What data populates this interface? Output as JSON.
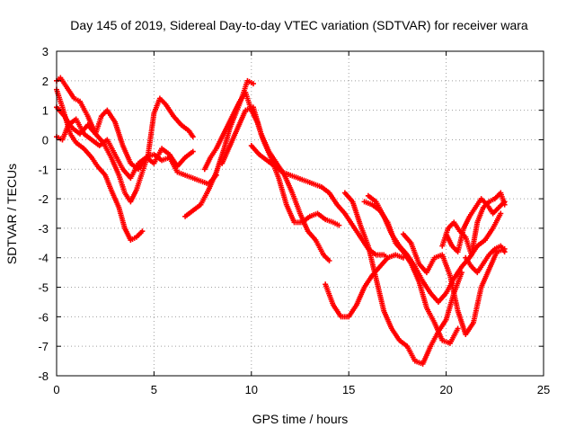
{
  "chart_data": {
    "type": "scatter",
    "title": "Day 145 of 2019, Sidereal Day-to-day VTEC variation (SDTVAR) for receiver wara",
    "xlabel": "GPS time / hours",
    "ylabel": "SDTVAR / TECUs",
    "xlim": [
      0,
      25
    ],
    "ylim": [
      -8,
      3
    ],
    "xticks": [
      0,
      5,
      10,
      15,
      20,
      25
    ],
    "yticks": [
      3,
      2,
      1,
      0,
      -1,
      -2,
      -3,
      -4,
      -5,
      -6,
      -7,
      -8
    ],
    "xtick_labels": [
      "0",
      "5",
      "10",
      "15",
      "20",
      "25"
    ],
    "ytick_labels": [
      "3",
      "2",
      "1",
      "0",
      "-1",
      "-2",
      "-3",
      "-4",
      "-5",
      "-6",
      "-7",
      "-8"
    ],
    "grid": true,
    "marker": "+",
    "color": "#ff0000",
    "series": [
      {
        "x": [
          0,
          0.3,
          0.7,
          1.0,
          1.4,
          1.8,
          2.1,
          2.5,
          2.8,
          3.2,
          3.5,
          3.8,
          4.1,
          4.4
        ],
        "y": [
          1.7,
          1.1,
          0.2,
          -0.1,
          -0.3,
          -0.6,
          -0.9,
          -1.2,
          -1.7,
          -2.3,
          -3.0,
          -3.4,
          -3.3,
          -3.1
        ]
      },
      {
        "x": [
          0,
          0.2,
          0.5,
          0.9,
          1.2,
          1.6,
          2.0,
          2.4,
          2.8,
          3.2,
          3.5,
          3.8,
          4.1,
          4.4,
          4.7,
          5.0,
          5.3,
          5.6,
          6.0,
          6.4,
          6.8,
          7.0
        ],
        "y": [
          2.0,
          2.1,
          1.8,
          1.4,
          1.3,
          0.8,
          0.2,
          -0.1,
          -0.6,
          -1.2,
          -1.8,
          -2.1,
          -1.7,
          -1.1,
          -0.5,
          0.9,
          1.4,
          1.2,
          0.8,
          0.5,
          0.3,
          0.1
        ]
      },
      {
        "x": [
          0,
          0.4,
          0.8,
          1.2,
          1.6,
          2.0,
          2.3,
          2.6,
          3.0,
          3.4,
          3.8,
          4.2,
          4.6,
          5.0,
          5.4,
          5.8,
          6.2,
          6.6,
          7.0,
          7.4,
          7.8,
          8.2
        ],
        "y": [
          1.1,
          0.8,
          0.4,
          0.2,
          0.5,
          0.2,
          0.8,
          1.0,
          0.6,
          -0.2,
          -0.8,
          -1.0,
          -0.6,
          -0.5,
          -0.7,
          -0.6,
          -1.1,
          -1.2,
          -1.3,
          -1.4,
          -1.5,
          -1.2
        ]
      },
      {
        "x": [
          0,
          0.3,
          0.6,
          1.0,
          1.4,
          1.8,
          2.2,
          2.6,
          3.0,
          3.4,
          3.8,
          4.2,
          4.6,
          5.0,
          5.4,
          5.8,
          6.2,
          6.6,
          7.0
        ],
        "y": [
          0.1,
          0.0,
          0.5,
          0.7,
          0.2,
          0.0,
          -0.2,
          0.0,
          -0.5,
          -1.0,
          -1.3,
          -0.8,
          -0.6,
          -0.8,
          -0.3,
          -0.5,
          -0.9,
          -0.6,
          -0.4
        ]
      },
      {
        "x": [
          6.6,
          7.0,
          7.4,
          7.8,
          8.2,
          8.6,
          8.9,
          9.2,
          9.5,
          9.8,
          10.1
        ],
        "y": [
          -2.6,
          -2.4,
          -2.2,
          -1.7,
          -1.1,
          -0.3,
          0.4,
          0.9,
          1.4,
          2.0,
          1.9
        ]
      },
      {
        "x": [
          7.6,
          7.9,
          8.2,
          8.5,
          8.8,
          9.1,
          9.4,
          9.7,
          10.0,
          10.3,
          10.6,
          11.0,
          11.4,
          11.8,
          12.2,
          12.6,
          13.0,
          13.4,
          13.8,
          14.2,
          14.5
        ],
        "y": [
          -1.0,
          -0.6,
          -0.3,
          0.1,
          0.5,
          0.9,
          1.3,
          1.6,
          1.0,
          0.6,
          0.0,
          -0.6,
          -1.3,
          -2.2,
          -2.8,
          -2.8,
          -2.6,
          -2.5,
          -2.7,
          -2.8,
          -2.9
        ]
      },
      {
        "x": [
          8.5,
          8.9,
          9.3,
          9.7,
          10.1,
          10.5,
          10.9,
          11.3,
          11.7,
          12.1,
          12.5,
          12.9,
          13.3,
          13.7,
          14.0
        ],
        "y": [
          -0.8,
          -0.2,
          0.4,
          1.0,
          1.1,
          0.2,
          -0.4,
          -0.8,
          -1.2,
          -1.8,
          -2.5,
          -3.1,
          -3.4,
          -3.9,
          -4.1
        ]
      },
      {
        "x": [
          10.0,
          10.4,
          10.8,
          11.2,
          11.6,
          12.0,
          12.4,
          12.8,
          13.2,
          13.6,
          14.0,
          14.4,
          14.8,
          15.2,
          15.6,
          16.0,
          16.4,
          16.8,
          17.0
        ],
        "y": [
          -0.2,
          -0.5,
          -0.7,
          -0.9,
          -1.1,
          -1.2,
          -1.3,
          -1.4,
          -1.5,
          -1.6,
          -1.8,
          -2.2,
          -2.5,
          -2.9,
          -3.3,
          -3.7,
          -3.9,
          -3.9,
          -4.0
        ]
      },
      {
        "x": [
          13.8,
          14.2,
          14.6,
          15.0,
          15.4,
          15.8,
          16.2,
          16.6,
          17.0,
          17.4,
          17.8
        ],
        "y": [
          -4.9,
          -5.6,
          -6.0,
          -6.0,
          -5.6,
          -5.0,
          -4.6,
          -4.3,
          -4.0,
          -3.9,
          -4.0
        ]
      },
      {
        "x": [
          14.8,
          15.2,
          15.6,
          16.0,
          16.4,
          16.8,
          17.2,
          17.6,
          18.0,
          18.4,
          18.8,
          19.2,
          19.6,
          20.0,
          20.4,
          20.8
        ],
        "y": [
          -1.8,
          -2.1,
          -2.9,
          -3.6,
          -4.7,
          -5.8,
          -6.4,
          -6.8,
          -7.0,
          -7.5,
          -7.6,
          -7.0,
          -6.5,
          -6.1,
          -5.2,
          -4.5
        ]
      },
      {
        "x": [
          15.8,
          16.2,
          16.6,
          17.0,
          17.4,
          17.8,
          18.2,
          18.6,
          19.0,
          19.4,
          19.8,
          20.2,
          20.6
        ],
        "y": [
          -2.1,
          -2.2,
          -2.4,
          -2.8,
          -3.5,
          -3.8,
          -4.2,
          -4.8,
          -5.7,
          -6.2,
          -6.8,
          -6.9,
          -6.4
        ]
      },
      {
        "x": [
          16.0,
          16.4,
          16.8,
          17.2,
          17.6,
          18.0,
          18.4,
          18.8,
          19.2,
          19.6,
          20.0,
          20.4,
          20.8,
          21.2,
          21.6,
          22.0,
          22.4,
          22.8
        ],
        "y": [
          -1.9,
          -2.1,
          -2.6,
          -3.2,
          -3.6,
          -3.9,
          -4.3,
          -4.8,
          -5.2,
          -5.5,
          -5.2,
          -4.7,
          -4.3,
          -4.0,
          -3.6,
          -3.4,
          -3.0,
          -2.5
        ]
      },
      {
        "x": [
          17.8,
          18.2,
          18.6,
          19.0,
          19.4,
          19.8,
          20.2,
          20.6,
          21.0,
          21.4,
          21.8,
          22.2,
          22.6,
          23.0
        ],
        "y": [
          -3.2,
          -3.5,
          -4.2,
          -4.5,
          -4.0,
          -3.9,
          -4.6,
          -5.8,
          -6.6,
          -6.2,
          -5.0,
          -4.4,
          -3.8,
          -3.7
        ]
      },
      {
        "x": [
          19.8,
          20.1,
          20.4,
          20.7,
          21.0,
          21.3,
          21.6,
          21.9,
          22.2,
          22.5,
          22.8,
          23.0
        ],
        "y": [
          -3.6,
          -3.0,
          -2.8,
          -3.1,
          -3.3,
          -3.9,
          -2.8,
          -2.3,
          -2.1,
          -2.0,
          -1.8,
          -2.2
        ]
      },
      {
        "x": [
          20.0,
          20.3,
          20.6,
          20.9,
          21.2,
          21.5,
          21.8,
          22.1,
          22.4,
          22.7,
          23.0
        ],
        "y": [
          -3.2,
          -3.6,
          -3.8,
          -3.0,
          -2.6,
          -2.3,
          -2.0,
          -2.2,
          -2.5,
          -2.3,
          -2.1
        ]
      },
      {
        "x": [
          21.0,
          21.3,
          21.6,
          21.9,
          22.2,
          22.5,
          22.8,
          23.0
        ],
        "y": [
          -4.0,
          -4.3,
          -4.5,
          -4.2,
          -3.9,
          -3.7,
          -3.6,
          -3.8
        ]
      }
    ]
  }
}
